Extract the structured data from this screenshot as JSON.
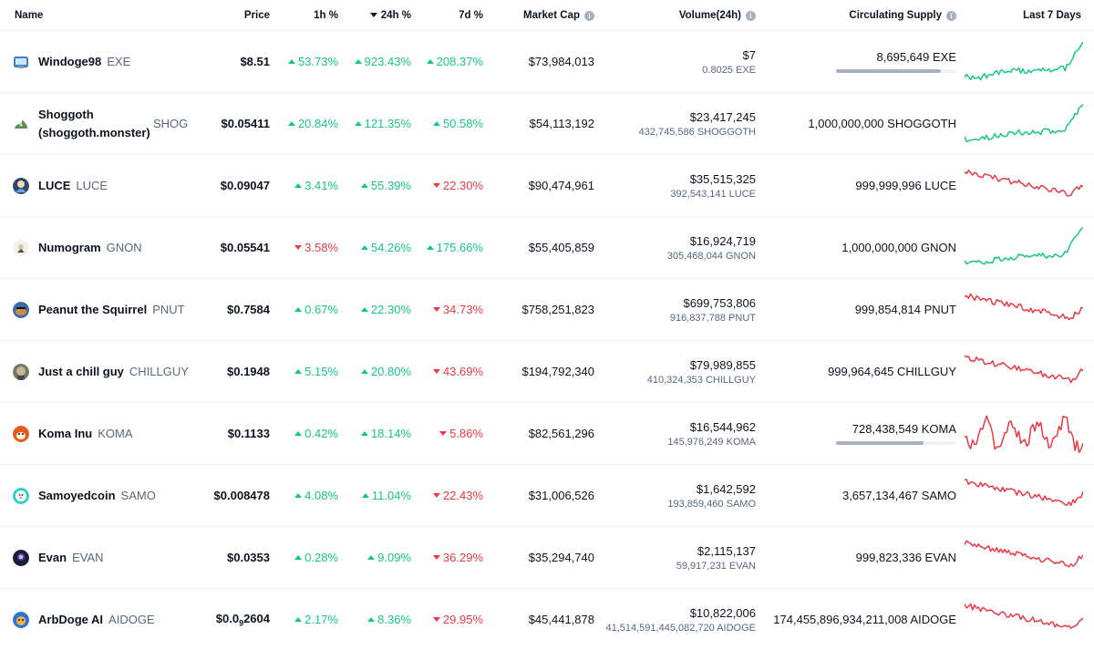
{
  "header": {
    "name": "Name",
    "price": "Price",
    "h1": "1h %",
    "h24": "24h %",
    "d7": "7d %",
    "market_cap": "Market Cap",
    "volume": "Volume(24h)",
    "supply": "Circulating Supply",
    "last7": "Last 7 Days"
  },
  "colors": {
    "up": "#16c784",
    "down": "#ea3943",
    "text": "#0d1421",
    "muted": "#58667e"
  },
  "rows": [
    {
      "name": "Windoge98",
      "symbol": "EXE",
      "price": "$8.51",
      "h1": "53.73%",
      "h1_dir": "up",
      "h24": "923.43%",
      "h24_dir": "up",
      "d7": "208.37%",
      "d7_dir": "up",
      "market_cap": "$73,984,013",
      "volume": "$7",
      "volume_sub": "0.8025 EXE",
      "supply": "8,695,649 EXE",
      "supply_progress": 0.87,
      "trend": "up",
      "icon": "windoge-logo-icon"
    },
    {
      "name": "Shoggoth (shoggoth.monster)",
      "symbol": "SHOG",
      "price": "$0.05411",
      "h1": "20.84%",
      "h1_dir": "up",
      "h24": "121.35%",
      "h24_dir": "up",
      "d7": "50.58%",
      "d7_dir": "up",
      "market_cap": "$54,113,192",
      "volume": "$23,417,245",
      "volume_sub": "432,745,586 SHOGGOTH",
      "supply": "1,000,000,000 SHOGGOTH",
      "trend": "up",
      "icon": "shoggoth-logo-icon"
    },
    {
      "name": "LUCE",
      "symbol": "LUCE",
      "price": "$0.09047",
      "h1": "3.41%",
      "h1_dir": "up",
      "h24": "55.39%",
      "h24_dir": "up",
      "d7": "22.30%",
      "d7_dir": "down",
      "market_cap": "$90,474,961",
      "volume": "$35,515,325",
      "volume_sub": "392,543,141 LUCE",
      "supply": "999,999,996 LUCE",
      "trend": "down",
      "icon": "luce-logo-icon"
    },
    {
      "name": "Numogram",
      "symbol": "GNON",
      "price": "$0.05541",
      "h1": "3.58%",
      "h1_dir": "down",
      "h24": "54.26%",
      "h24_dir": "up",
      "d7": "175.66%",
      "d7_dir": "up",
      "market_cap": "$55,405,859",
      "volume": "$16,924,719",
      "volume_sub": "305,468,044 GNON",
      "supply": "1,000,000,000 GNON",
      "trend": "up",
      "icon": "numogram-logo-icon"
    },
    {
      "name": "Peanut the Squirrel",
      "symbol": "PNUT",
      "price": "$0.7584",
      "h1": "0.67%",
      "h1_dir": "up",
      "h24": "22.30%",
      "h24_dir": "up",
      "d7": "34.73%",
      "d7_dir": "down",
      "market_cap": "$758,251,823",
      "volume": "$699,753,806",
      "volume_sub": "916,837,788 PNUT",
      "supply": "999,854,814 PNUT",
      "trend": "down",
      "icon": "pnut-logo-icon"
    },
    {
      "name": "Just a chill guy",
      "symbol": "CHILLGUY",
      "price": "$0.1948",
      "h1": "5.15%",
      "h1_dir": "up",
      "h24": "20.80%",
      "h24_dir": "up",
      "d7": "43.69%",
      "d7_dir": "down",
      "market_cap": "$194,792,340",
      "volume": "$79,989,855",
      "volume_sub": "410,324,353 CHILLGUY",
      "supply": "999,964,645 CHILLGUY",
      "trend": "down",
      "icon": "chillguy-logo-icon"
    },
    {
      "name": "Koma Inu",
      "symbol": "KOMA",
      "price": "$0.1133",
      "h1": "0.42%",
      "h1_dir": "up",
      "h24": "18.14%",
      "h24_dir": "up",
      "d7": "5.86%",
      "d7_dir": "down",
      "market_cap": "$82,561,296",
      "volume": "$16,544,962",
      "volume_sub": "145,976,249 KOMA",
      "supply": "728,438,549 KOMA",
      "supply_progress": 0.73,
      "trend": "volatile",
      "icon": "koma-logo-icon"
    },
    {
      "name": "Samoyedcoin",
      "symbol": "SAMO",
      "price": "$0.008478",
      "h1": "4.08%",
      "h1_dir": "up",
      "h24": "11.04%",
      "h24_dir": "up",
      "d7": "22.43%",
      "d7_dir": "down",
      "market_cap": "$31,006,526",
      "volume": "$1,642,592",
      "volume_sub": "193,859,460 SAMO",
      "supply": "3,657,134,467 SAMO",
      "trend": "down",
      "icon": "samo-logo-icon"
    },
    {
      "name": "Evan",
      "symbol": "EVAN",
      "price": "$0.0353",
      "h1": "0.28%",
      "h1_dir": "up",
      "h24": "9.09%",
      "h24_dir": "up",
      "d7": "36.29%",
      "d7_dir": "down",
      "market_cap": "$35,294,740",
      "volume": "$2,115,137",
      "volume_sub": "59,917,231 EVAN",
      "supply": "999,823,336 EVAN",
      "trend": "down",
      "icon": "evan-logo-icon"
    },
    {
      "name": "ArbDoge AI",
      "symbol": "AIDOGE",
      "price_prefix": "$0.0",
      "price_sub": "9",
      "price_suffix": "2604",
      "h1": "2.17%",
      "h1_dir": "up",
      "h24": "8.36%",
      "h24_dir": "up",
      "d7": "29.95%",
      "d7_dir": "down",
      "market_cap": "$45,441,878",
      "volume": "$10,822,006",
      "volume_sub": "41,514,591,445,082,720 AIDOGE",
      "supply": "174,455,896,934,211,008 AIDOGE",
      "trend": "down",
      "icon": "aidoge-logo-icon"
    }
  ]
}
